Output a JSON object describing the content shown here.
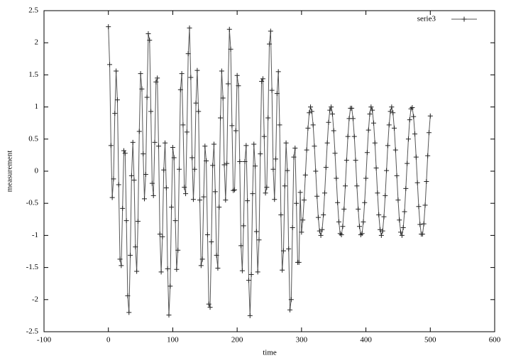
{
  "chart_data": {
    "type": "line",
    "xlabel": "time",
    "ylabel": "measurement",
    "x": [
      0,
      2,
      4,
      6,
      8,
      10,
      12,
      14,
      16,
      18,
      20,
      22,
      24,
      26,
      28,
      30,
      32,
      34,
      36,
      38,
      40,
      42,
      44,
      46,
      48,
      50,
      52,
      54,
      56,
      58,
      60,
      62,
      64,
      66,
      68,
      70,
      72,
      74,
      76,
      78,
      80,
      82,
      84,
      86,
      88,
      90,
      92,
      94,
      96,
      98,
      100,
      102,
      104,
      106,
      108,
      110,
      112,
      114,
      116,
      118,
      120,
      122,
      124,
      126,
      128,
      130,
      132,
      134,
      136,
      138,
      140,
      142,
      144,
      146,
      148,
      150,
      152,
      154,
      156,
      158,
      160,
      162,
      164,
      166,
      168,
      170,
      172,
      174,
      176,
      178,
      180,
      182,
      184,
      186,
      188,
      190,
      192,
      194,
      196,
      198,
      200,
      202,
      204,
      206,
      208,
      210,
      212,
      214,
      216,
      218,
      220,
      222,
      224,
      226,
      228,
      230,
      232,
      234,
      236,
      238,
      240,
      242,
      244,
      246,
      248,
      250,
      252,
      254,
      256,
      258,
      260,
      262,
      264,
      266,
      268,
      270,
      272,
      274,
      276,
      278,
      280,
      282,
      284,
      286,
      288,
      290,
      292,
      294,
      296,
      298,
      300,
      302,
      304,
      306,
      308,
      310,
      312,
      314,
      316,
      318,
      320,
      322,
      324,
      326,
      328,
      330,
      332,
      334,
      336,
      338,
      340,
      342,
      344,
      346,
      348,
      350,
      352,
      354,
      356,
      358,
      360,
      362,
      364,
      366,
      368,
      370,
      372,
      374,
      376,
      378,
      380,
      382,
      384,
      386,
      388,
      390,
      392,
      394,
      396,
      398,
      400,
      402,
      404,
      406,
      408,
      410,
      412,
      414,
      416,
      418,
      420,
      422,
      424,
      426,
      428,
      430,
      432,
      434,
      436,
      438,
      440,
      442,
      444,
      446,
      448,
      450,
      452,
      454,
      456,
      458,
      460,
      462,
      464,
      466,
      468,
      470,
      472,
      474,
      476,
      478,
      480,
      482,
      484,
      486,
      488,
      490,
      492,
      494,
      496,
      498,
      500
    ],
    "series": [
      {
        "name": "serie3",
        "color": "#555555",
        "marker_color": "#222222",
        "values": [
          2.25,
          1.66,
          0.4,
          -0.41,
          -0.12,
          0.9,
          1.56,
          1.11,
          -0.21,
          -1.37,
          -1.47,
          -0.58,
          0.32,
          0.28,
          -0.77,
          -1.94,
          -2.2,
          -1.31,
          -0.07,
          0.45,
          -0.14,
          -1.18,
          -1.56,
          -0.78,
          0.62,
          1.52,
          1.28,
          0.27,
          -0.43,
          -0.05,
          1.15,
          2.14,
          2.04,
          0.93,
          -0.19,
          -0.38,
          0.45,
          1.39,
          1.45,
          0.39,
          -0.98,
          -1.57,
          -1.02,
          0.02,
          0.44,
          -0.26,
          -1.52,
          -2.24,
          -1.79,
          -0.56,
          0.37,
          0.21,
          -0.77,
          -1.53,
          -1.23,
          0.03,
          1.27,
          1.52,
          0.72,
          -0.25,
          -0.35,
          0.61,
          1.83,
          2.23,
          1.46,
          0.21,
          -0.44,
          0.03,
          1.06,
          1.57,
          0.93,
          -0.45,
          -1.47,
          -1.37,
          -0.4,
          0.39,
          0.16,
          -0.99,
          -2.07,
          -2.12,
          -1.1,
          0.09,
          0.42,
          -0.32,
          -1.31,
          -1.51,
          -0.56,
          0.83,
          1.56,
          1.14,
          0.1,
          -0.45,
          0.12,
          1.36,
          2.21,
          1.9,
          0.71,
          -0.3,
          -0.29,
          0.63,
          1.49,
          1.33,
          0.15,
          -1.16,
          -1.55,
          -0.85,
          0.15,
          0.4,
          -0.46,
          -1.7,
          -2.25,
          -1.61,
          -0.35,
          0.42,
          0.08,
          -0.94,
          -1.57,
          -1.07,
          0.27,
          1.4,
          1.44,
          0.54,
          -0.34,
          -0.25,
          0.83,
          1.98,
          2.18,
          1.26,
          0.03,
          -0.44,
          0.19,
          1.21,
          1.55,
          0.72,
          -0.68,
          -1.54,
          -1.24,
          -0.23,
          0.44,
          0.01,
          -1.21,
          -2.16,
          -2,
          -0.88,
          0.22,
          0.36,
          -0.5,
          -1.42,
          -1.42,
          -0.33,
          -0.95,
          -0.76,
          -0.45,
          -0.06,
          0.33,
          0.67,
          0.91,
          1,
          0.93,
          0.72,
          0.39,
          0,
          -0.39,
          -0.72,
          -0.93,
          -1,
          -0.91,
          -0.68,
          -0.34,
          0.06,
          0.44,
          0.76,
          0.95,
          1,
          0.89,
          0.63,
          0.28,
          -0.11,
          -0.49,
          -0.79,
          -0.97,
          -0.99,
          -0.86,
          -0.59,
          -0.23,
          0.17,
          0.54,
          0.82,
          0.98,
          0.98,
          0.82,
          0.54,
          0.17,
          -0.23,
          -0.59,
          -0.86,
          -0.99,
          -0.97,
          -0.79,
          -0.49,
          -0.11,
          0.29,
          0.64,
          0.89,
          1,
          0.95,
          0.75,
          0.44,
          0.05,
          -0.34,
          -0.68,
          -0.91,
          -1,
          -0.93,
          -0.71,
          -0.38,
          0.01,
          0.4,
          0.72,
          0.93,
          1,
          0.91,
          0.67,
          0.33,
          -0.07,
          -0.45,
          -0.76,
          -0.95,
          -1,
          -0.88,
          -0.63,
          -0.27,
          0.12,
          0.5,
          0.8,
          0.97,
          0.99,
          0.85,
          0.58,
          0.22,
          -0.18,
          -0.55,
          -0.83,
          -0.98,
          -0.98,
          -0.82,
          -0.53,
          -0.16,
          0.24,
          0.6,
          0.86
        ]
      }
    ],
    "xlim": [
      -100,
      600
    ],
    "xticks": [
      -100,
      0,
      100,
      200,
      300,
      400,
      500,
      600
    ],
    "ylim": [
      -2.5,
      2.5
    ],
    "yticks": [
      -2.5,
      -2,
      -1.5,
      -1,
      -0.5,
      0,
      0.5,
      1,
      1.5,
      2,
      2.5
    ],
    "grid": false,
    "legend": "upper right"
  }
}
